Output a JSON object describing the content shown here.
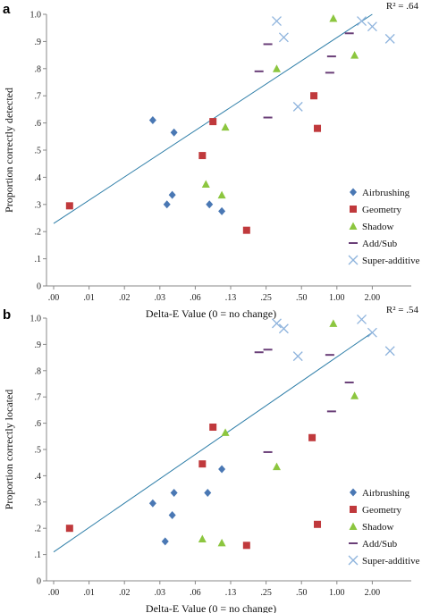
{
  "chart_data": [
    {
      "panel_label": "a",
      "type": "scatter",
      "xlabel": "Delta-E Value  (0 = no change)",
      "ylabel": "Proportion correctly detected",
      "r2_text": "R² = .64",
      "x_tick_labels": [
        ".00",
        ".01",
        ".02",
        ".03",
        ".06",
        ".13",
        ".25",
        ".50",
        "1.00",
        "2.00"
      ],
      "y_tick_labels": [
        "0",
        ".1",
        ".2",
        ".3",
        ".4",
        ".5",
        ".6",
        ".7",
        ".8",
        ".9",
        "1.0"
      ],
      "ylim": [
        0,
        1
      ],
      "trendline": {
        "x": [
          0.0,
          9.0
        ],
        "y": [
          0.23,
          1.0
        ]
      },
      "series": [
        {
          "name": "Airbrushing",
          "marker": "diamond",
          "color": "#4a78b4",
          "points": [
            [
              2.8,
              0.61
            ],
            [
              3.2,
              0.3
            ],
            [
              3.35,
              0.335
            ],
            [
              3.4,
              0.565
            ],
            [
              4.4,
              0.3
            ],
            [
              4.75,
              0.275
            ]
          ]
        },
        {
          "name": "Geometry",
          "marker": "square",
          "color": "#c0393c",
          "points": [
            [
              0.45,
              0.295
            ],
            [
              4.2,
              0.48
            ],
            [
              4.5,
              0.605
            ],
            [
              5.45,
              0.205
            ],
            [
              7.35,
              0.7
            ],
            [
              7.45,
              0.58
            ]
          ]
        },
        {
          "name": "Shadow",
          "marker": "triangle",
          "color": "#8cc63f",
          "points": [
            [
              4.3,
              0.375
            ],
            [
              4.75,
              0.335
            ],
            [
              4.85,
              0.585
            ],
            [
              6.3,
              0.8
            ],
            [
              7.9,
              0.985
            ],
            [
              8.5,
              0.85
            ]
          ]
        },
        {
          "name": "Add/Sub",
          "marker": "dash",
          "color": "#6a3f78",
          "points": [
            [
              5.8,
              0.79
            ],
            [
              6.05,
              0.89
            ],
            [
              6.05,
              0.62
            ],
            [
              7.8,
              0.785
            ],
            [
              7.85,
              0.845
            ],
            [
              8.35,
              0.93
            ]
          ]
        },
        {
          "name": "Super-additive",
          "marker": "x",
          "color": "#8fb4dd",
          "points": [
            [
              6.3,
              0.975
            ],
            [
              6.5,
              0.915
            ],
            [
              6.9,
              0.66
            ],
            [
              8.7,
              0.975
            ],
            [
              9.0,
              0.955
            ],
            [
              9.5,
              0.91
            ]
          ]
        }
      ]
    },
    {
      "panel_label": "b",
      "type": "scatter",
      "xlabel": "Delta-E Value  (0 = no change)",
      "ylabel": "Proportion correctly located",
      "r2_text": "R² = .54",
      "x_tick_labels": [
        ".00",
        ".01",
        ".02",
        ".03",
        ".06",
        ".13",
        ".25",
        ".50",
        "1.00",
        "2.00"
      ],
      "y_tick_labels": [
        "0",
        ".1",
        ".2",
        ".3",
        ".4",
        ".5",
        ".6",
        ".7",
        ".8",
        ".9",
        "1.0"
      ],
      "ylim": [
        0,
        1
      ],
      "trendline": {
        "x": [
          0.0,
          9.0
        ],
        "y": [
          0.11,
          0.945
        ]
      },
      "series": [
        {
          "name": "Airbrushing",
          "marker": "diamond",
          "color": "#4a78b4",
          "points": [
            [
              2.8,
              0.295
            ],
            [
              3.15,
              0.15
            ],
            [
              3.35,
              0.25
            ],
            [
              3.4,
              0.335
            ],
            [
              4.35,
              0.335
            ],
            [
              4.75,
              0.425
            ]
          ]
        },
        {
          "name": "Geometry",
          "marker": "square",
          "color": "#c0393c",
          "points": [
            [
              0.45,
              0.2
            ],
            [
              4.2,
              0.445
            ],
            [
              4.5,
              0.585
            ],
            [
              5.45,
              0.135
            ],
            [
              7.3,
              0.545
            ],
            [
              7.45,
              0.215
            ]
          ]
        },
        {
          "name": "Shadow",
          "marker": "triangle",
          "color": "#8cc63f",
          "points": [
            [
              4.2,
              0.16
            ],
            [
              4.75,
              0.145
            ],
            [
              4.85,
              0.565
            ],
            [
              6.3,
              0.435
            ],
            [
              7.9,
              0.98
            ],
            [
              8.5,
              0.705
            ]
          ]
        },
        {
          "name": "Add/Sub",
          "marker": "dash",
          "color": "#6a3f78",
          "points": [
            [
              5.8,
              0.87
            ],
            [
              6.05,
              0.88
            ],
            [
              6.05,
              0.49
            ],
            [
              7.8,
              0.86
            ],
            [
              7.85,
              0.645
            ],
            [
              8.35,
              0.755
            ]
          ]
        },
        {
          "name": "Super-additive",
          "marker": "x",
          "color": "#8fb4dd",
          "points": [
            [
              6.3,
              0.98
            ],
            [
              6.5,
              0.96
            ],
            [
              6.9,
              0.855
            ],
            [
              8.7,
              0.995
            ],
            [
              9.0,
              0.945
            ],
            [
              9.5,
              0.875
            ]
          ]
        }
      ]
    }
  ]
}
